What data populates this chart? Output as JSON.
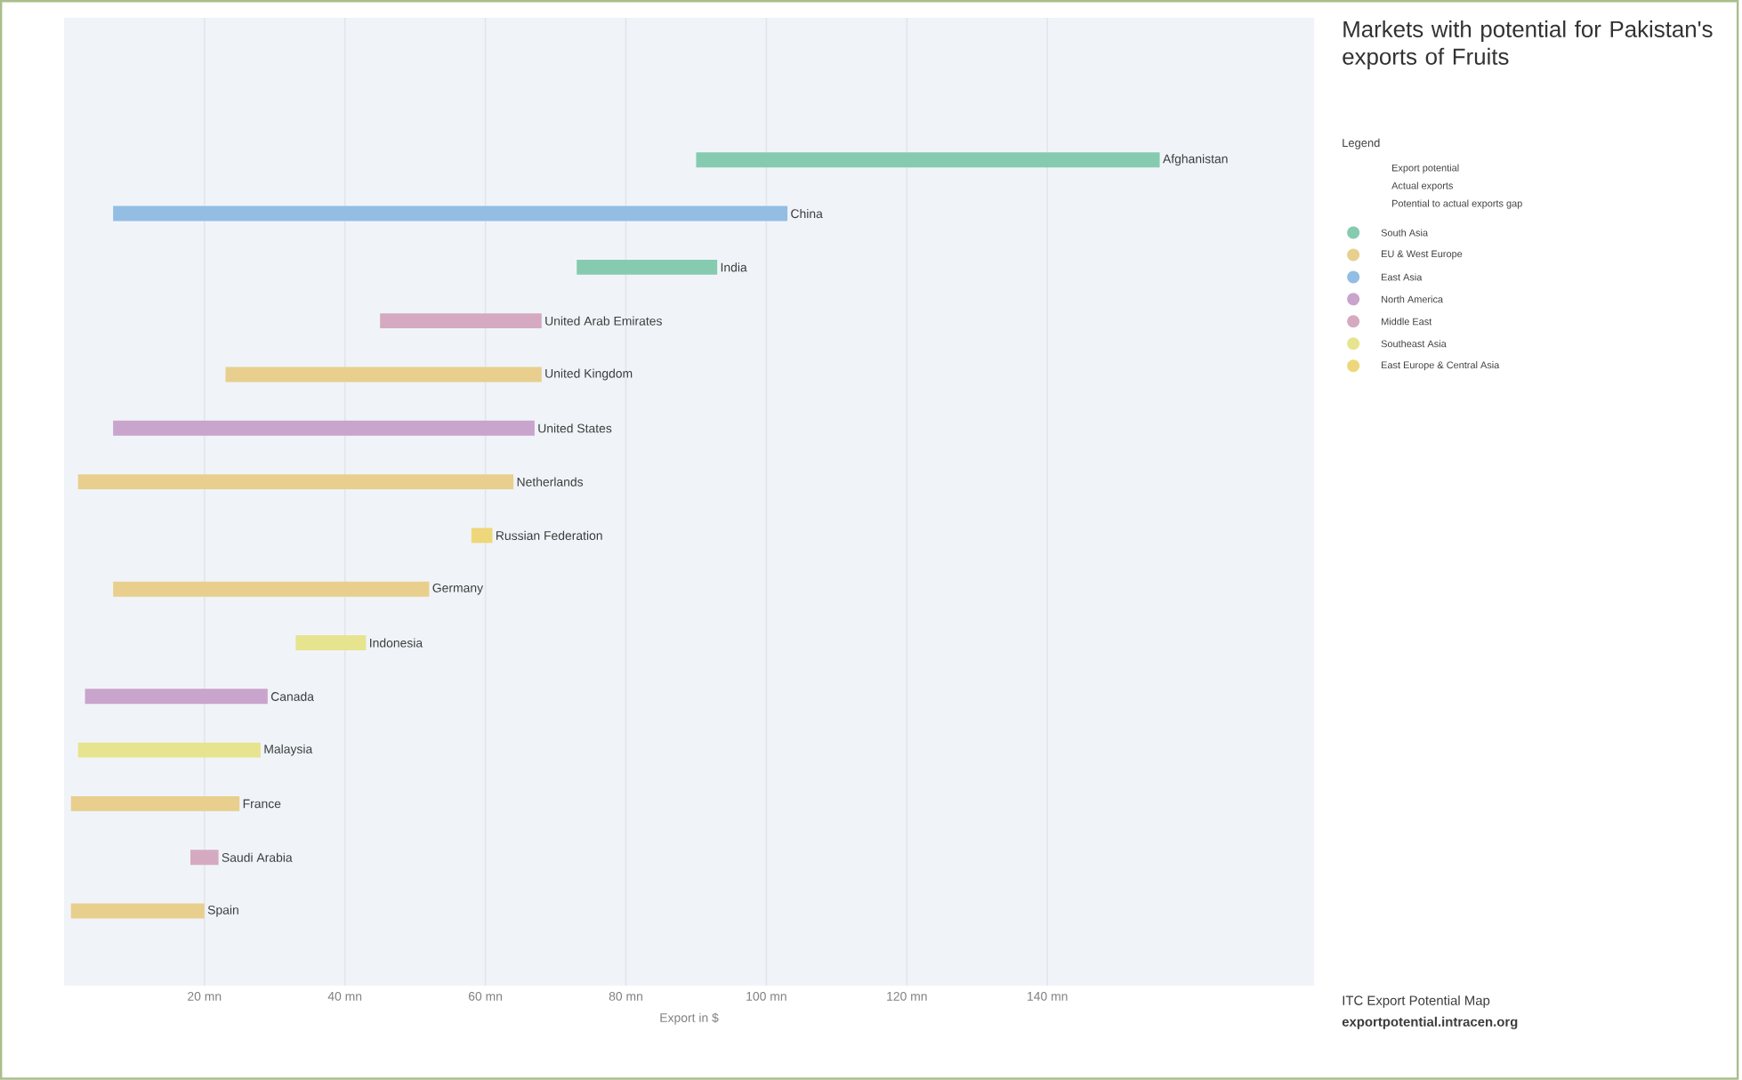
{
  "chart_data": {
    "type": "bar",
    "orientation": "horizontal",
    "title": "Markets with potential for Pakistan's exports of Fruits",
    "legend_title": "Legend",
    "xlabel": "Export in $",
    "categories": [
      "Afghanistan",
      "China",
      "India",
      "United Arab Emirates",
      "United Kingdom",
      "United States",
      "Netherlands",
      "Russian Federation",
      "Germany",
      "Indonesia",
      "Canada",
      "Malaysia",
      "France",
      "Saudi Arabia",
      "Spain"
    ],
    "series": [
      {
        "name": "South Asia",
        "color": "#86cbb0",
        "values": [
          66,
          null,
          20,
          null,
          null,
          null,
          null,
          null,
          null,
          null,
          null,
          null,
          null,
          null,
          null
        ],
        "base": [
          90,
          null,
          73,
          null,
          null,
          null,
          null,
          null,
          null,
          null,
          null,
          null,
          null,
          null,
          null
        ]
      },
      {
        "name": "EU & West Europe",
        "color": "#e8cf8e",
        "values": [
          null,
          null,
          null,
          null,
          45,
          null,
          62,
          null,
          45,
          null,
          null,
          null,
          24,
          null,
          19
        ],
        "base": [
          null,
          null,
          null,
          null,
          23,
          null,
          2,
          null,
          7,
          null,
          null,
          null,
          1,
          null,
          1
        ]
      },
      {
        "name": "East Asia",
        "color": "#93bde3",
        "values": [
          null,
          96,
          null,
          null,
          null,
          null,
          null,
          null,
          null,
          null,
          null,
          null,
          null,
          null,
          null
        ],
        "base": [
          null,
          7,
          null,
          null,
          null,
          null,
          null,
          null,
          null,
          null,
          null,
          null,
          null,
          null,
          null
        ]
      },
      {
        "name": "North America",
        "color": "#c9a4cc",
        "values": [
          null,
          null,
          null,
          null,
          null,
          60,
          null,
          null,
          null,
          null,
          26,
          null,
          null,
          null,
          null
        ],
        "base": [
          null,
          null,
          null,
          null,
          null,
          7,
          null,
          null,
          null,
          null,
          3,
          null,
          null,
          null,
          null
        ]
      },
      {
        "name": "Middle East",
        "color": "#d5aac0",
        "values": [
          null,
          null,
          null,
          23,
          null,
          null,
          null,
          null,
          null,
          null,
          null,
          null,
          null,
          4,
          null
        ],
        "base": [
          null,
          null,
          null,
          45,
          null,
          null,
          null,
          null,
          null,
          null,
          null,
          null,
          null,
          18,
          null
        ]
      },
      {
        "name": "Southeast Asia",
        "color": "#e6e48e",
        "values": [
          null,
          null,
          null,
          null,
          null,
          null,
          null,
          null,
          null,
          10,
          null,
          26,
          null,
          null,
          null
        ],
        "base": [
          null,
          null,
          null,
          null,
          null,
          null,
          null,
          null,
          null,
          33,
          null,
          2,
          null,
          null,
          null
        ]
      },
      {
        "name": "East Europe & Central Asia",
        "color": "#eed77a",
        "values": [
          null,
          null,
          null,
          null,
          null,
          null,
          null,
          3,
          null,
          null,
          null,
          null,
          null,
          null,
          null
        ],
        "base": [
          null,
          null,
          null,
          null,
          null,
          null,
          null,
          58,
          null,
          null,
          null,
          null,
          null,
          null,
          null
        ]
      }
    ],
    "xlim": [
      0,
      178
    ],
    "xticks": [
      {
        "value": 20,
        "label": "20 mn"
      },
      {
        "value": 40,
        "label": "40 mn"
      },
      {
        "value": 60,
        "label": "60 mn"
      },
      {
        "value": 80,
        "label": "80 mn"
      },
      {
        "value": 100,
        "label": "100 mn"
      },
      {
        "value": 120,
        "label": "120 mn"
      },
      {
        "value": 140,
        "label": "140 mn"
      }
    ],
    "grid": "x",
    "legend": "right",
    "annotations": [
      "Export potential",
      "Actual exports",
      "Potential to actual exports gap",
      "ITC Export Potential Map",
      "exportpotential.intracen.org"
    ]
  }
}
